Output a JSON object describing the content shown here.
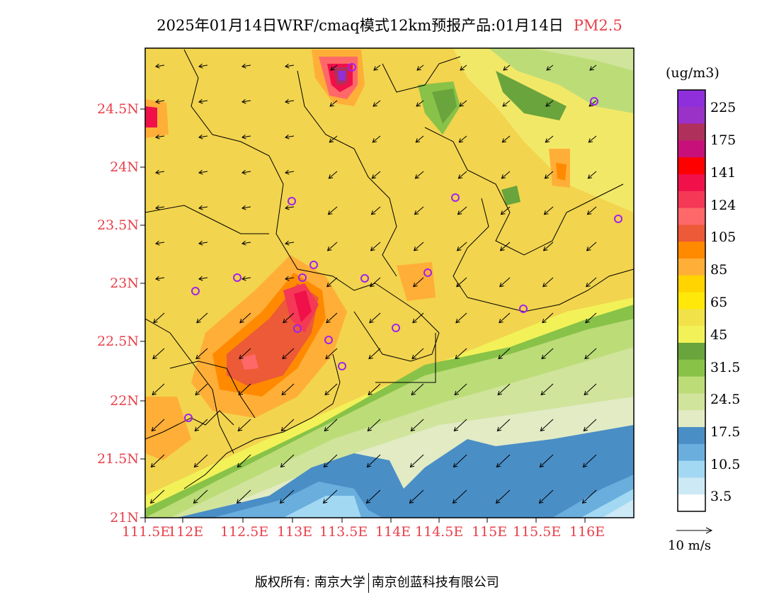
{
  "title": {
    "main": "2025年01月14日WRF/cmaq模式12km预报产品:01月14日",
    "species": "PM2.5"
  },
  "axes": {
    "y_ticks": [
      "24.5N",
      "24N",
      "23.5N",
      "23N",
      "22.5N",
      "22N",
      "21.5N",
      "21N"
    ],
    "x_ticks": [
      "111.5E",
      "112E",
      "112.5E",
      "113E",
      "113.5E",
      "114E",
      "114.5E",
      "115E",
      "115.5E",
      "116E"
    ]
  },
  "colorbar": {
    "unit": "(ug/m3)",
    "colors": [
      "#8f2fdc",
      "#9b32c8",
      "#b0305c",
      "#c8107a",
      "#ff0000",
      "#f0104a",
      "#f43856",
      "#ff6868",
      "#ec5a38",
      "#ff8a00",
      "#ffae38",
      "#ffd400",
      "#ffe80a",
      "#f0e248",
      "#f2f258",
      "#6aa43c",
      "#88c248",
      "#bcdc78",
      "#d0e49c",
      "#e2ebc4",
      "#4a8ec6",
      "#6aaede",
      "#a2d8f2",
      "#cde9f6",
      "#ffffff"
    ],
    "labels": [
      "225",
      "175",
      "141",
      "124",
      "105",
      "85",
      "65",
      "45",
      "31.5",
      "24.5",
      "17.5",
      "10.5",
      "3.5"
    ]
  },
  "wind": {
    "label": "10 m/s"
  },
  "footer": {
    "left": "版权所有: 南京大学",
    "right": "南京创蓝科技有限公司"
  }
}
